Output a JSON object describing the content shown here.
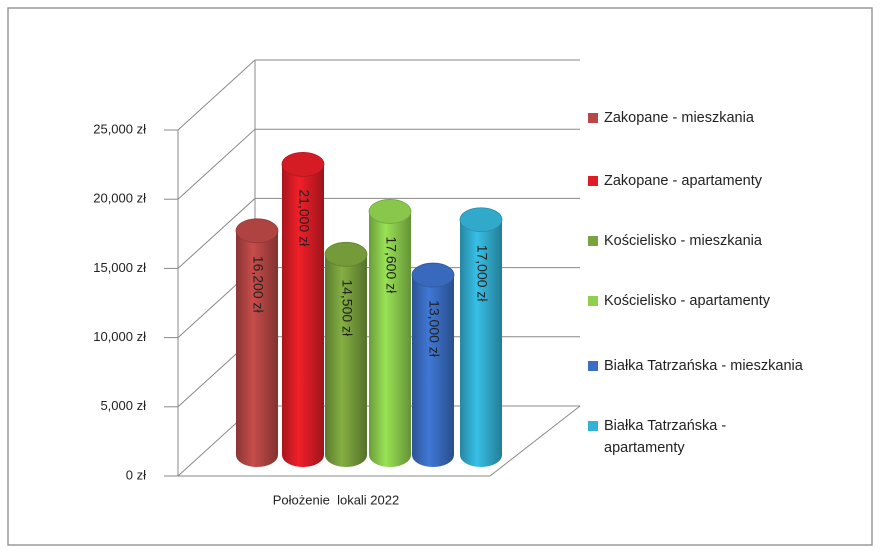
{
  "chart_data": {
    "type": "bar3d",
    "categories": [
      "Położenie  lokali 2022"
    ],
    "series": [
      {
        "name": "Zakopane - mieszkania",
        "color": "#b84745",
        "values": [
          16200
        ],
        "value_labels": [
          "16,200 zł"
        ]
      },
      {
        "name": "Zakopane - apartamenty",
        "color": "#e01d26",
        "values": [
          21000
        ],
        "value_labels": [
          "21,000 zł"
        ]
      },
      {
        "name": "Kościelisko - mieszkania",
        "color": "#7aa23d",
        "values": [
          14500
        ],
        "value_labels": [
          "14,500 zł"
        ]
      },
      {
        "name": "Kościelisko - apartamenty",
        "color": "#8fd14f",
        "values": [
          17600
        ],
        "value_labels": [
          "17,600 zł"
        ]
      },
      {
        "name": "Białka Tatrzańska - mieszkania",
        "color": "#3b6fc6",
        "values": [
          13000
        ],
        "value_labels": [
          "13,000 zł"
        ]
      },
      {
        "name": "Białka Tatrzańska - apartamenty",
        "color": "#33b2d6",
        "values": [
          17000
        ],
        "value_labels": [
          "17,000 zł"
        ]
      }
    ],
    "ylim": [
      0,
      25000
    ],
    "yticks": [
      {
        "value": 0,
        "label": "0 zł"
      },
      {
        "value": 5000,
        "label": "5,000 zł"
      },
      {
        "value": 10000,
        "label": "10,000 zł"
      },
      {
        "value": 15000,
        "label": "15,000 zł"
      },
      {
        "value": 20000,
        "label": "20,000 zł"
      },
      {
        "value": 25000,
        "label": "25,000 zł"
      }
    ],
    "grid": true,
    "legend": "right"
  }
}
